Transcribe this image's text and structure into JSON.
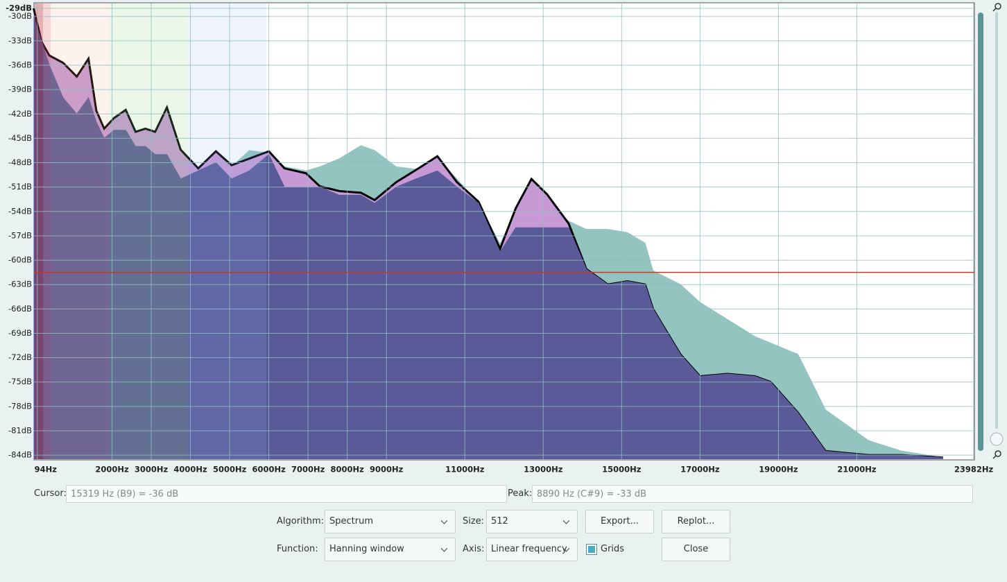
{
  "chart_data": {
    "type": "area",
    "x": [
      0,
      200,
      400,
      750,
      1100,
      1400,
      1600,
      1800,
      2050,
      2350,
      2600,
      2850,
      3100,
      3400,
      3750,
      4200,
      4650,
      5050,
      5500,
      6000,
      6400,
      6950,
      7300,
      7800,
      8350,
      8700,
      9250,
      9750,
      10300,
      10800,
      11350,
      11900,
      12300,
      12700,
      13100,
      13650,
      14100,
      14650,
      15150,
      15600,
      15800,
      16500,
      17000,
      17700,
      18400,
      18800,
      19500,
      20200,
      21300,
      22150,
      23200
    ],
    "series": [
      {
        "color": "#c79ad6",
        "values": [
          -29,
          -33.1,
          -34.8,
          -35.7,
          -37.4,
          -35.2,
          -41.6,
          -43.8,
          -42.5,
          -41.5,
          -44.2,
          -43.8,
          -44.2,
          -41.2,
          -46.4,
          -48.7,
          -46.6,
          -48.3,
          -47.5,
          -46.6,
          -48.7,
          -49.3,
          -50.9,
          -51.5,
          -51.7,
          -52.6,
          -50.4,
          -48.9,
          -47.2,
          -50.4,
          -52.8,
          -58.6,
          -53.6,
          -50.0,
          -51.9,
          -55.5,
          -61.1,
          -63.0,
          -62.6,
          -63.0,
          -66.0,
          -71.6,
          -74.3,
          -74.0,
          -74.3,
          -75.0,
          -78.8,
          -83.5,
          -84.0,
          -84.0,
          -84.3
        ]
      },
      {
        "color": "#93c4c0",
        "values": [
          -30,
          -34,
          -36,
          -38,
          -40,
          -39,
          -43,
          -45,
          -44,
          -44,
          -46,
          -46,
          -46,
          -45,
          -47,
          -49,
          -47.5,
          -48.5,
          -46.5,
          -46.8,
          -48.5,
          -49,
          -48.5,
          -47.5,
          -45.9,
          -46.5,
          -48.5,
          -48.8,
          -47.5,
          -50,
          -53,
          -58,
          -54,
          -53,
          -53,
          -55.2,
          -56.2,
          -56.2,
          -56.6,
          -57.9,
          -61.3,
          -63.0,
          -65.2,
          -67.3,
          -69.4,
          -70.2,
          -71.6,
          -78.4,
          -82.2,
          -83.5,
          -84.3
        ]
      },
      {
        "color": "#5a5a98",
        "values": [
          -30,
          -33,
          -36,
          -40,
          -42,
          -40,
          -43,
          -45,
          -44,
          -44,
          -46,
          -46,
          -47,
          -47,
          -50,
          -49,
          -48,
          -50,
          -49,
          -47,
          -51,
          -51,
          -51,
          -52,
          -52,
          -53,
          -51,
          -50,
          -49,
          -51,
          -53,
          -59,
          -56,
          -56,
          -56,
          -56,
          -61.1,
          -63.0,
          -62.6,
          -63.0,
          -66.0,
          -71.6,
          -74.3,
          -74.0,
          -74.3,
          -75.0,
          -78.8,
          -83.5,
          -84.0,
          -84.0,
          -84.3
        ]
      }
    ],
    "threshold": -61.5,
    "threshold_color": "#c0392b",
    "xlim": [
      0,
      23982
    ],
    "xticks": [
      {
        "value": 94,
        "label": "94Hz"
      },
      {
        "value": 2000,
        "label": "2000Hz"
      },
      {
        "value": 3000,
        "label": "3000Hz"
      },
      {
        "value": 4000,
        "label": "4000Hz"
      },
      {
        "value": 5000,
        "label": "5000Hz"
      },
      {
        "value": 6000,
        "label": "6000Hz"
      },
      {
        "value": 7000,
        "label": "7000Hz"
      },
      {
        "value": 8000,
        "label": "8000Hz"
      },
      {
        "value": 9000,
        "label": "9000Hz"
      },
      {
        "value": 11000,
        "label": "11000Hz"
      },
      {
        "value": 13000,
        "label": "13000Hz"
      },
      {
        "value": 15000,
        "label": "15000Hz"
      },
      {
        "value": 17000,
        "label": "17000Hz"
      },
      {
        "value": 19000,
        "label": "19000Hz"
      },
      {
        "value": 21000,
        "label": "21000Hz"
      },
      {
        "value": 23982,
        "label": "23982Hz"
      }
    ],
    "ylim": [
      -84.5,
      -28.4
    ],
    "yticks": [
      {
        "value": -29,
        "label": "-29dB"
      },
      {
        "value": -30,
        "label": "-30dB"
      },
      {
        "value": -33,
        "label": "-33dB"
      },
      {
        "value": -36,
        "label": "-36dB"
      },
      {
        "value": -39,
        "label": "-39dB"
      },
      {
        "value": -42,
        "label": "-42dB"
      },
      {
        "value": -45,
        "label": "-45dB"
      },
      {
        "value": -48,
        "label": "-48dB"
      },
      {
        "value": -51,
        "label": "-51dB"
      },
      {
        "value": -54,
        "label": "-54dB"
      },
      {
        "value": -57,
        "label": "-57dB"
      },
      {
        "value": -60,
        "label": "-60dB"
      },
      {
        "value": -63,
        "label": "-63dB"
      },
      {
        "value": -66,
        "label": "-66dB"
      },
      {
        "value": -69,
        "label": "-69dB"
      },
      {
        "value": -72,
        "label": "-72dB"
      },
      {
        "value": -75,
        "label": "-75dB"
      },
      {
        "value": -78,
        "label": "-78dB"
      },
      {
        "value": -81,
        "label": "-81dB"
      },
      {
        "value": -84,
        "label": "-84dB"
      }
    ],
    "grid": true
  },
  "controls": {
    "cursor_label": "Cursor:",
    "cursor_value": "15319 Hz (B9) = -36 dB",
    "peak_label": "Peak:",
    "peak_value": "8890 Hz (C#9) = -33 dB",
    "algorithm_label": "Algorithm:",
    "algorithm": "Spectrum",
    "size_label": "Size:",
    "size": "512",
    "export": "Export...",
    "replot": "Replot...",
    "function_label": "Function:",
    "function": "Hanning window",
    "axis_label": "Axis:",
    "axis": "Linear frequency",
    "grids": "Grids",
    "grids_checked": true,
    "close": "Close"
  }
}
